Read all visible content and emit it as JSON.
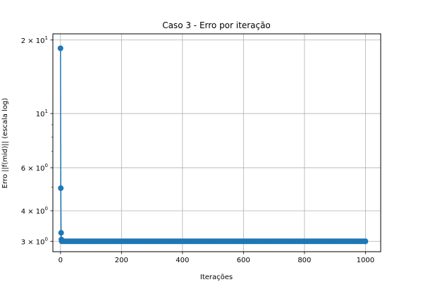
{
  "chart_data": {
    "type": "line",
    "title": "Caso 3 - Erro por iteração",
    "xlabel": "Iterações",
    "ylabel": "Erro ||f(mid)|| (escala log)",
    "y_scale": "log",
    "grid": true,
    "xlim": [
      -25,
      1050
    ],
    "ylim": [
      2.72,
      21.2
    ],
    "x_ticks": [
      0,
      200,
      400,
      600,
      800,
      1000
    ],
    "x_tick_labels": [
      "0",
      "200",
      "400",
      "600",
      "800",
      "1000"
    ],
    "y_ticks": [
      {
        "value": 3,
        "mantissa": "3",
        "exp": "0"
      },
      {
        "value": 4,
        "mantissa": "4",
        "exp": "0"
      },
      {
        "value": 6,
        "mantissa": "6",
        "exp": "0"
      },
      {
        "value": 10,
        "mantissa": "10",
        "exp": "1",
        "short": true
      },
      {
        "value": 20,
        "mantissa": "2",
        "exp": "1"
      }
    ],
    "y_minor_ticks": [
      5,
      7,
      8,
      9
    ],
    "series": [
      {
        "color": "#1f77b4",
        "first_points": [
          {
            "x": 0,
            "y": 18.5
          },
          {
            "x": 1,
            "y": 4.95
          },
          {
            "x": 2,
            "y": 3.25
          },
          {
            "x": 3,
            "y": 3.05
          }
        ],
        "plateau": {
          "x_start": 4,
          "x_end": 1000,
          "step": 5,
          "y": 3.0
        }
      }
    ]
  }
}
